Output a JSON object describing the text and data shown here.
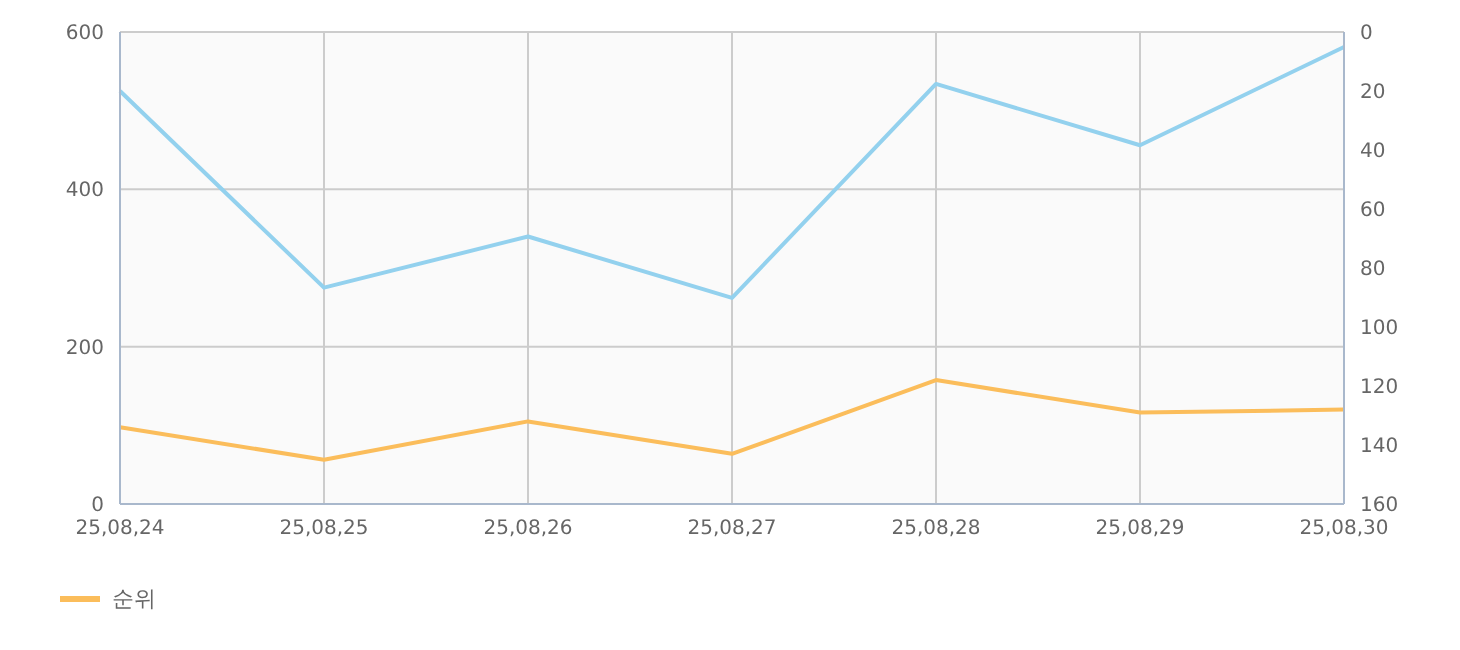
{
  "chart_data": {
    "type": "line",
    "categories": [
      "25,08,24",
      "25,08,25",
      "25,08,26",
      "25,08,27",
      "25,08,28",
      "25,08,29",
      "25,08,30"
    ],
    "series": [
      {
        "color": "#93d1ee",
        "values": [
          525,
          275,
          340,
          262,
          534,
          456,
          581
        ]
      },
      {
        "name": "순위",
        "color": "#fbbd5b",
        "axis": "y2",
        "values": [
          134,
          145,
          132,
          143,
          118,
          129,
          128
        ]
      }
    ],
    "ylim": [
      0,
      600
    ],
    "yticks": [
      0,
      200,
      400,
      600
    ],
    "y2lim": [
      160,
      0
    ],
    "y2ticks": [
      0,
      20,
      40,
      60,
      80,
      100,
      120,
      140,
      160
    ],
    "grid": true,
    "legend": "bottom left",
    "marker": "none",
    "line_style": "solid"
  }
}
